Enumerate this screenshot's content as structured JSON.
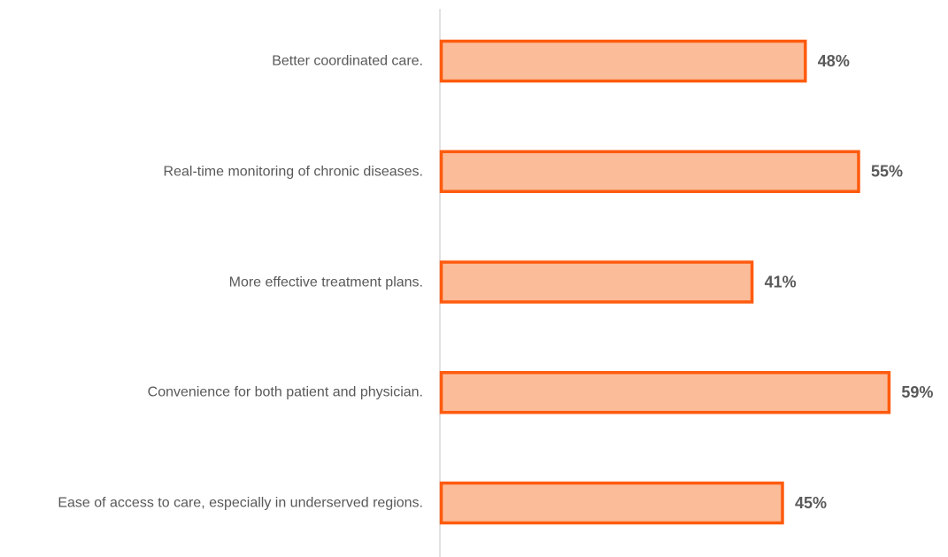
{
  "chart_data": {
    "type": "bar",
    "orientation": "horizontal",
    "categories": [
      "Better coordinated care.",
      "Real-time monitoring of chronic diseases.",
      "More effective treatment plans.",
      "Convenience for both patient and physician.",
      "Ease of access to care, especially in underserved regions."
    ],
    "values": [
      48,
      55,
      41,
      59,
      45
    ],
    "value_labels": [
      "48%",
      "55%",
      "41%",
      "59%",
      "45%"
    ],
    "color": "#fbbc99",
    "edge_color": "#ff5b0e"
  }
}
